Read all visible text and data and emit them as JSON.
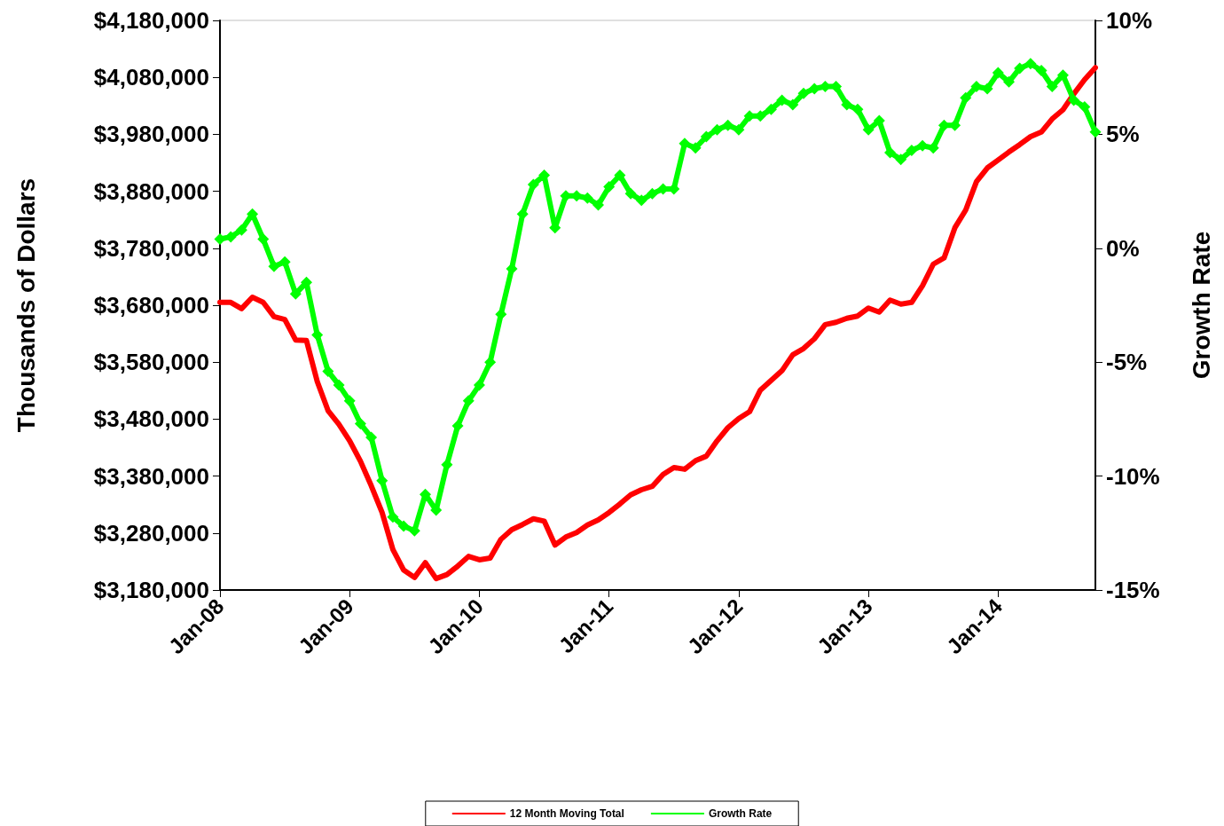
{
  "chart_data": {
    "type": "line",
    "categories": [
      "Jan-08",
      null,
      null,
      null,
      null,
      null,
      null,
      null,
      null,
      null,
      null,
      null,
      "Jan-09",
      null,
      null,
      null,
      null,
      null,
      null,
      null,
      null,
      null,
      null,
      null,
      "Jan-10",
      null,
      null,
      null,
      null,
      null,
      null,
      null,
      null,
      null,
      null,
      null,
      "Jan-11",
      null,
      null,
      null,
      null,
      null,
      null,
      null,
      null,
      null,
      null,
      null,
      "Jan-12",
      null,
      null,
      null,
      null,
      null,
      null,
      null,
      null,
      null,
      null,
      null,
      "Jan-13",
      null,
      null,
      null,
      null,
      null,
      null,
      null,
      null,
      null,
      null,
      null,
      "Jan-14",
      null,
      null,
      null,
      null,
      null,
      null,
      null,
      null,
      null
    ],
    "ylabel": "Thousands of Dollars",
    "y2label": "Growth Rate",
    "ylim": [
      3180000,
      4180000
    ],
    "yticks": [
      {
        "value": 3180000,
        "label": "$3,180,000"
      },
      {
        "value": 3280000,
        "label": "$3,280,000"
      },
      {
        "value": 3380000,
        "label": "$3,380,000"
      },
      {
        "value": 3480000,
        "label": "$3,480,000"
      },
      {
        "value": 3580000,
        "label": "$3,580,000"
      },
      {
        "value": 3680000,
        "label": "$3,680,000"
      },
      {
        "value": 3780000,
        "label": "$3,780,000"
      },
      {
        "value": 3880000,
        "label": "$3,880,000"
      },
      {
        "value": 3980000,
        "label": "$3,980,000"
      },
      {
        "value": 4080000,
        "label": "$4,080,000"
      },
      {
        "value": 4180000,
        "label": "$4,180,000"
      }
    ],
    "y2lim": [
      -15,
      10
    ],
    "y2ticks": [
      {
        "value": -15,
        "label": "-15%"
      },
      {
        "value": -10,
        "label": "-10%"
      },
      {
        "value": -5,
        "label": "-5%"
      },
      {
        "value": 0,
        "label": "0%"
      },
      {
        "value": 5,
        "label": "5%"
      },
      {
        "value": 10,
        "label": "10%"
      }
    ],
    "grid": false,
    "legend": "bottom",
    "line_style": "solid",
    "series": [
      {
        "name": "12 Month Moving Total",
        "color": "#ff0000",
        "marker": "none",
        "values": [
          3685000,
          3685000,
          3674000,
          3694000,
          3685000,
          3660000,
          3655000,
          3619000,
          3618000,
          3546000,
          3495000,
          3471000,
          3442000,
          3406000,
          3363000,
          3316000,
          3251000,
          3215000,
          3202000,
          3228000,
          3200000,
          3207000,
          3222000,
          3239000,
          3233000,
          3236000,
          3269000,
          3286000,
          3295000,
          3305000,
          3301000,
          3259000,
          3273000,
          3281000,
          3294000,
          3303000,
          3316000,
          3331000,
          3347000,
          3356000,
          3362000,
          3383000,
          3395000,
          3392000,
          3407000,
          3415000,
          3442000,
          3465000,
          3481000,
          3493000,
          3531000,
          3548000,
          3565000,
          3593000,
          3604000,
          3621000,
          3646000,
          3650000,
          3657000,
          3661000,
          3675000,
          3668000,
          3689000,
          3682000,
          3685000,
          3714000,
          3752000,
          3763000,
          3816000,
          3847000,
          3897000,
          3921000,
          3935000,
          3949000,
          3962000,
          3976000,
          3984000,
          4007000,
          4023000,
          4051000,
          4076000,
          4097000
        ]
      },
      {
        "name": "Growth Rate",
        "color": "#00ff00",
        "marker": "diamond",
        "axis": "y2",
        "values": [
          0.4,
          0.5,
          0.8,
          1.5,
          0.4,
          -0.8,
          -0.6,
          -2.0,
          -1.5,
          -3.8,
          -5.4,
          -6.0,
          -6.7,
          -7.7,
          -8.3,
          -10.2,
          -11.8,
          -12.2,
          -12.4,
          -10.8,
          -11.5,
          -9.5,
          -7.8,
          -6.7,
          -6.0,
          -5.0,
          -2.9,
          -0.9,
          1.5,
          2.8,
          3.2,
          0.9,
          2.3,
          2.3,
          2.2,
          1.9,
          2.7,
          3.2,
          2.4,
          2.1,
          2.4,
          2.6,
          2.6,
          4.6,
          4.4,
          4.9,
          5.2,
          5.4,
          5.2,
          5.8,
          5.8,
          6.1,
          6.5,
          6.3,
          6.8,
          7.0,
          7.1,
          7.1,
          6.3,
          6.1,
          5.2,
          5.6,
          4.2,
          3.9,
          4.3,
          4.5,
          4.4,
          5.4,
          5.4,
          6.6,
          7.1,
          7.0,
          7.7,
          7.3,
          7.9,
          8.1,
          7.8,
          7.1,
          7.6,
          6.5,
          6.2,
          5.1
        ]
      }
    ]
  }
}
